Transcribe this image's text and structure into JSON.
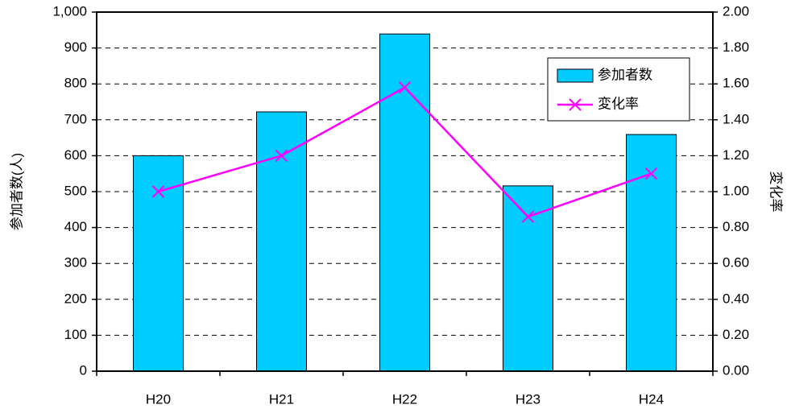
{
  "chart_data": {
    "type": "bar_line",
    "categories": [
      "H20",
      "H21",
      "H22",
      "H23",
      "H24"
    ],
    "series": [
      {
        "name": "参加者数",
        "color": "#00ccff",
        "values": [
          600,
          722,
          939,
          516,
          659
        ]
      },
      {
        "name": "変化率",
        "color": "#ff00ff",
        "axis": "y2",
        "values": [
          1.0,
          1.2,
          1.58,
          0.86,
          1.1
        ]
      }
    ],
    "ylabel": "参加者数(人)",
    "y2label": "変化率",
    "ylim": [
      0,
      1000
    ],
    "yticks": [
      0,
      100,
      200,
      300,
      400,
      500,
      600,
      700,
      800,
      900,
      {
        "value": 1000,
        "label": "1,000"
      }
    ],
    "y2lim": [
      0,
      2
    ],
    "y2ticks": [
      {
        "value": 0,
        "label": "0.00"
      },
      {
        "value": 0.2,
        "label": "0.20"
      },
      {
        "value": 0.4,
        "label": "0.40"
      },
      {
        "value": 0.6,
        "label": "0.60"
      },
      {
        "value": 0.8,
        "label": "0.80"
      },
      {
        "value": 1,
        "label": "1.00"
      },
      {
        "value": 1.2,
        "label": "1.20"
      },
      {
        "value": 1.4,
        "label": "1.40"
      },
      {
        "value": 1.6,
        "label": "1.60"
      },
      {
        "value": 1.8,
        "label": "1.80"
      },
      {
        "value": 2,
        "label": "2.00"
      }
    ],
    "grid": true,
    "legend": "upper right"
  }
}
